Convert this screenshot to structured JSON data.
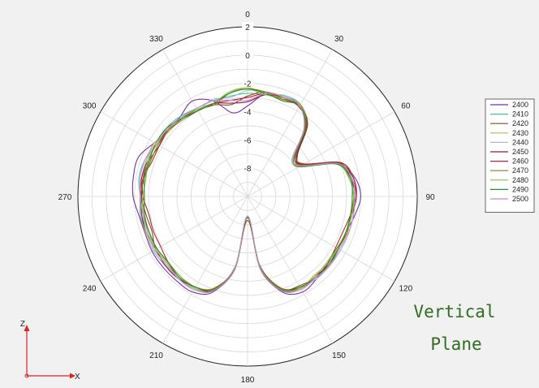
{
  "chart_data": {
    "type": "polar-line",
    "title": "",
    "radial_ticks": [
      "2",
      "0",
      "-2",
      "-4",
      "-6",
      "-8"
    ],
    "rlim": [
      -10,
      2
    ],
    "angle_ticks": [
      "0",
      "30",
      "60",
      "90",
      "120",
      "150",
      "180",
      "210",
      "240",
      "270",
      "300",
      "330"
    ],
    "angle_direction": "clockwise from top",
    "grid": true,
    "legend_position": "right",
    "angles_deg": [
      0,
      10,
      20,
      30,
      40,
      50,
      60,
      70,
      80,
      90,
      100,
      110,
      120,
      130,
      140,
      150,
      160,
      170,
      180,
      190,
      200,
      210,
      220,
      230,
      240,
      250,
      260,
      270,
      280,
      290,
      300,
      310,
      320,
      330,
      340,
      350
    ],
    "series": [
      {
        "name": "2400",
        "color": "#7a2fa8",
        "values": [
          -3.6,
          -2.6,
          -2.5,
          -2.5,
          -3.5,
          -5.6,
          -5.5,
          -3.2,
          -2.3,
          -2.0,
          -2.3,
          -2.6,
          -2.6,
          -2.6,
          -2.4,
          -2.2,
          -2.8,
          -4.9,
          -8.6,
          -4.9,
          -2.8,
          -2.2,
          -2.2,
          -2.2,
          -2.2,
          -2.3,
          -2.2,
          -1.9,
          -1.8,
          -1.8,
          -2.4,
          -2.7,
          -2.6,
          -2.2,
          -2.8,
          -4.0
        ]
      },
      {
        "name": "2410",
        "color": "#4cbf9c",
        "values": [
          -2.7,
          -2.7,
          -2.4,
          -2.5,
          -3.6,
          -5.8,
          -5.6,
          -3.2,
          -2.6,
          -2.3,
          -2.6,
          -2.6,
          -2.6,
          -2.6,
          -2.5,
          -2.5,
          -2.9,
          -4.9,
          -8.6,
          -4.8,
          -2.9,
          -2.5,
          -2.4,
          -2.4,
          -2.3,
          -2.4,
          -2.3,
          -2.4,
          -2.2,
          -2.3,
          -2.6,
          -2.5,
          -2.6,
          -2.8,
          -2.8,
          -2.8
        ]
      },
      {
        "name": "2420",
        "color": "#8a4a1f",
        "values": [
          -2.9,
          -2.5,
          -2.6,
          -2.6,
          -3.4,
          -5.4,
          -5.5,
          -3.1,
          -2.6,
          -2.4,
          -2.6,
          -2.5,
          -2.6,
          -2.4,
          -2.5,
          -2.7,
          -3.0,
          -4.9,
          -8.3,
          -4.8,
          -3.0,
          -2.6,
          -2.5,
          -2.6,
          -2.5,
          -2.8,
          -2.7,
          -2.5,
          -2.5,
          -2.8,
          -2.8,
          -2.6,
          -2.7,
          -2.9,
          -3.1,
          -3.4
        ]
      },
      {
        "name": "2430",
        "color": "#b8bb52",
        "values": [
          -2.3,
          -2.6,
          -2.6,
          -2.5,
          -3.8,
          -5.9,
          -5.6,
          -3.3,
          -2.7,
          -2.5,
          -2.6,
          -2.6,
          -2.7,
          -2.6,
          -2.7,
          -2.5,
          -3.1,
          -5.1,
          -8.6,
          -4.8,
          -3.0,
          -2.5,
          -2.6,
          -2.7,
          -2.6,
          -2.5,
          -2.6,
          -2.5,
          -2.5,
          -2.4,
          -2.4,
          -2.8,
          -2.7,
          -2.9,
          -3.0,
          -2.5
        ]
      },
      {
        "name": "2440",
        "color": "#a8bcd0",
        "values": [
          -2.5,
          -2.5,
          -2.7,
          -2.5,
          -3.8,
          -5.9,
          -5.7,
          -3.3,
          -2.4,
          -2.5,
          -2.4,
          -2.4,
          -2.4,
          -2.4,
          -2.4,
          -2.6,
          -2.9,
          -5.1,
          -8.6,
          -5.0,
          -2.9,
          -2.4,
          -2.5,
          -2.4,
          -2.3,
          -2.4,
          -2.4,
          -2.4,
          -2.4,
          -2.4,
          -2.6,
          -2.7,
          -2.7,
          -3.0,
          -2.7,
          -2.9
        ]
      },
      {
        "name": "2450",
        "color": "#8c1a4c",
        "values": [
          -3.3,
          -2.7,
          -2.7,
          -2.6,
          -3.5,
          -5.4,
          -5.6,
          -3.0,
          -2.5,
          -2.3,
          -2.5,
          -2.6,
          -2.6,
          -2.5,
          -2.6,
          -2.5,
          -2.9,
          -4.8,
          -8.5,
          -4.8,
          -2.9,
          -2.6,
          -2.4,
          -2.4,
          -2.5,
          -2.4,
          -2.4,
          -2.5,
          -2.4,
          -2.5,
          -2.6,
          -2.7,
          -2.9,
          -3.0,
          -3.0,
          -3.3
        ]
      },
      {
        "name": "2460",
        "color": "#a82a2a",
        "values": [
          -3.0,
          -2.6,
          -2.6,
          -2.7,
          -3.5,
          -5.5,
          -5.4,
          -3.0,
          -2.4,
          -2.3,
          -2.6,
          -2.8,
          -2.8,
          -2.6,
          -2.5,
          -2.6,
          -3.1,
          -5.0,
          -8.5,
          -4.9,
          -3.0,
          -2.6,
          -2.6,
          -2.7,
          -2.9,
          -2.9,
          -2.9,
          -2.6,
          -2.5,
          -2.6,
          -2.8,
          -2.7,
          -2.8,
          -2.9,
          -3.0,
          -3.1
        ]
      },
      {
        "name": "2470",
        "color": "#8c7a1a",
        "values": [
          -2.4,
          -2.5,
          -2.7,
          -2.5,
          -3.7,
          -5.6,
          -5.6,
          -3.2,
          -2.7,
          -2.5,
          -2.6,
          -2.5,
          -2.7,
          -2.7,
          -2.6,
          -2.5,
          -3.1,
          -5.0,
          -8.5,
          -4.9,
          -3.1,
          -2.6,
          -2.6,
          -2.7,
          -2.6,
          -2.6,
          -2.5,
          -2.4,
          -2.6,
          -2.7,
          -2.7,
          -2.7,
          -2.8,
          -2.9,
          -3.1,
          -2.6
        ]
      },
      {
        "name": "2480",
        "color": "#7fc84a",
        "values": [
          -2.4,
          -2.7,
          -2.6,
          -2.5,
          -3.6,
          -5.7,
          -5.7,
          -3.3,
          -2.7,
          -2.5,
          -2.5,
          -2.6,
          -2.6,
          -2.7,
          -2.6,
          -2.5,
          -2.9,
          -5.0,
          -8.6,
          -5.0,
          -2.9,
          -2.5,
          -2.6,
          -2.6,
          -2.5,
          -2.4,
          -2.5,
          -2.6,
          -2.7,
          -2.5,
          -2.6,
          -2.6,
          -2.9,
          -2.9,
          -3.0,
          -2.5
        ]
      },
      {
        "name": "2490",
        "color": "#2e8a2e",
        "values": [
          -2.4,
          -2.6,
          -2.8,
          -2.6,
          -3.6,
          -5.7,
          -5.8,
          -3.3,
          -2.6,
          -2.6,
          -2.6,
          -2.6,
          -2.6,
          -2.5,
          -2.5,
          -2.6,
          -3.0,
          -5.0,
          -8.5,
          -4.9,
          -3.0,
          -2.6,
          -2.5,
          -2.7,
          -2.6,
          -2.6,
          -2.6,
          -2.7,
          -2.6,
          -2.6,
          -2.5,
          -2.5,
          -2.8,
          -3.0,
          -3.0,
          -2.6
        ]
      },
      {
        "name": "2500",
        "color": "#c98ad0",
        "values": [
          -3.2,
          -2.6,
          -2.5,
          -2.6,
          -3.8,
          -5.8,
          -5.7,
          -3.2,
          -2.5,
          -2.4,
          -2.4,
          -2.4,
          -2.5,
          -2.4,
          -2.5,
          -2.4,
          -2.9,
          -4.9,
          -8.6,
          -4.9,
          -2.9,
          -2.4,
          -2.4,
          -2.5,
          -2.4,
          -2.5,
          -2.5,
          -2.4,
          -2.3,
          -2.3,
          -2.5,
          -2.6,
          -2.7,
          -2.8,
          -2.8,
          -3.1
        ]
      }
    ]
  },
  "annotation": {
    "line1": "Vertical",
    "line2": "Plane"
  },
  "axis_indicator": {
    "z_label": "Z",
    "x_label": "X"
  }
}
